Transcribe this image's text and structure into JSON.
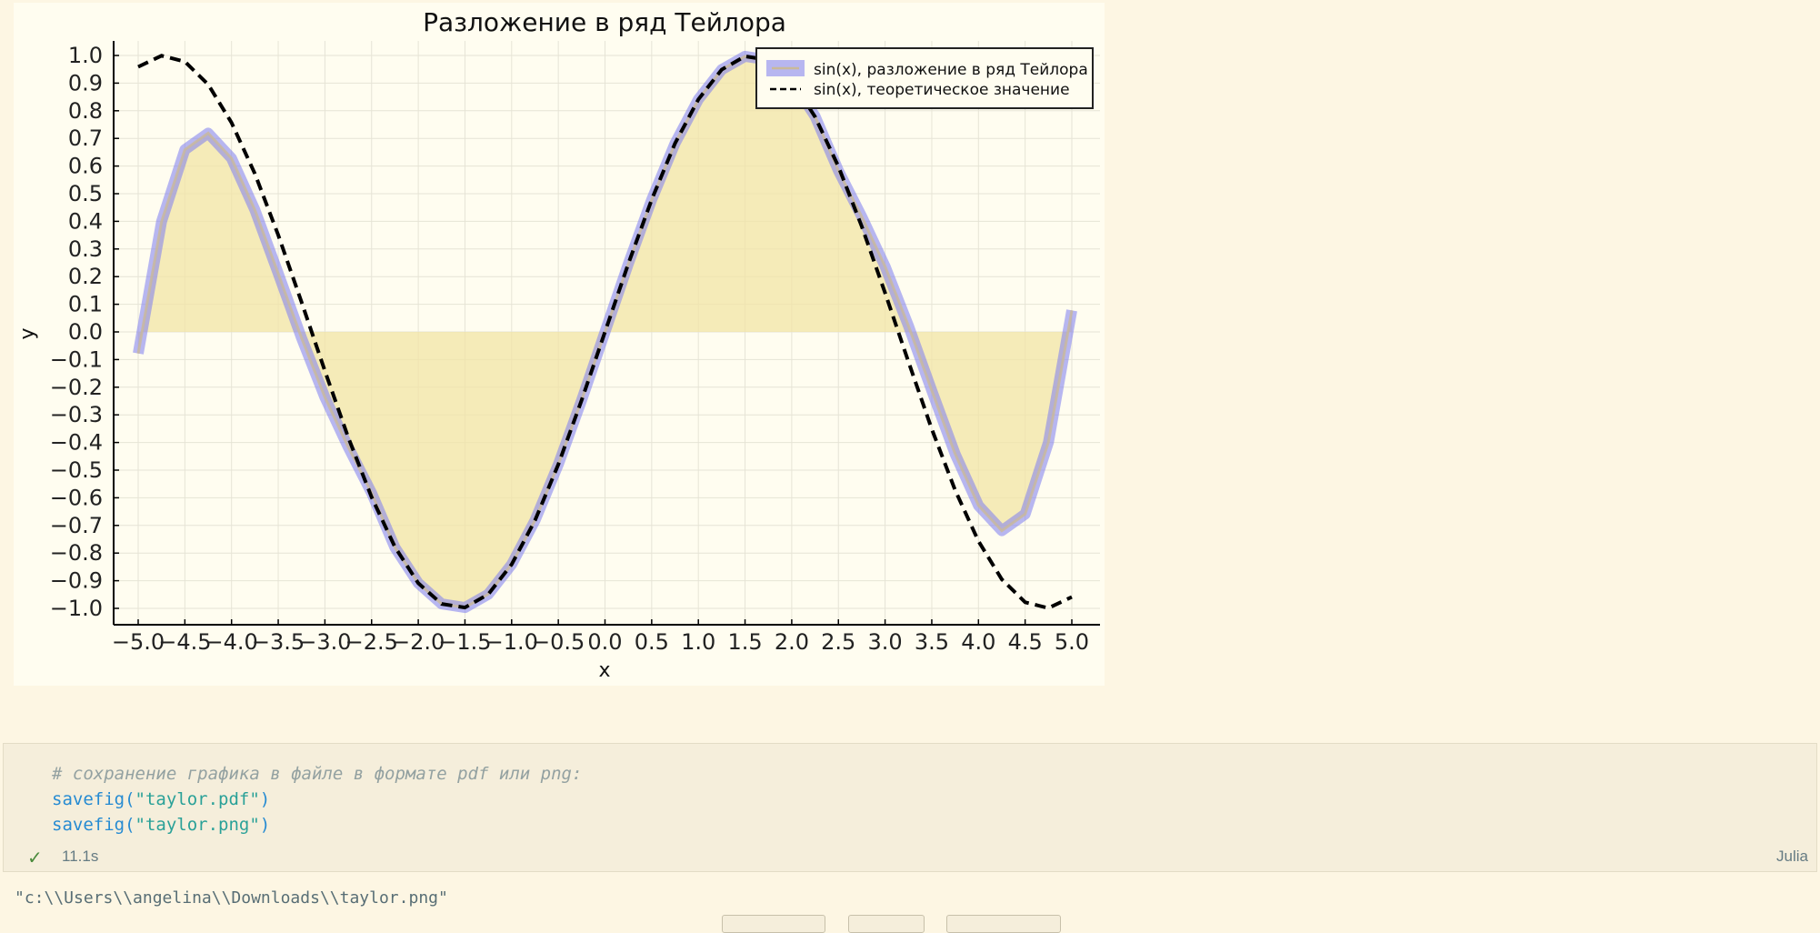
{
  "plot": {
    "chart_data": {
      "type": "line",
      "title": "Разложение в ряд Тейлора",
      "xlabel": "x",
      "ylabel": "y",
      "xlim": [
        -5.0,
        5.0
      ],
      "ylim": [
        -1.0,
        1.0
      ],
      "xticks": [
        "−5.0",
        "−4.5",
        "−4.0",
        "−3.5",
        "−3.0",
        "−2.5",
        "−2.0",
        "−1.5",
        "−1.0",
        "−0.5",
        "0.0",
        "0.5",
        "1.0",
        "1.5",
        "2.0",
        "2.5",
        "3.0",
        "3.5",
        "4.0",
        "4.5",
        "5.0"
      ],
      "yticks": [
        "−1.0",
        "−0.9",
        "−0.8",
        "−0.7",
        "−0.6",
        "−0.5",
        "−0.4",
        "−0.3",
        "−0.2",
        "−0.1",
        "0.0",
        "0.1",
        "0.2",
        "0.3",
        "0.4",
        "0.5",
        "0.6",
        "0.7",
        "0.8",
        "0.9",
        "1.0"
      ],
      "grid": true,
      "legend_position": "top-right",
      "series": [
        {
          "name": "sin(x), разложение в ряд Тейлора",
          "style": "thick semi-transparent blue line with filled area to y=0",
          "color": "#7b7bf0",
          "fill_color": "#f2e4a6",
          "x": [
            -5.0,
            -4.75,
            -4.5,
            -4.25,
            -4.0,
            -3.75,
            -3.5,
            -3.25,
            -3.0,
            -2.75,
            -2.5,
            -2.25,
            -2.0,
            -1.75,
            -1.5,
            -1.25,
            -1.0,
            -0.75,
            -0.5,
            -0.25,
            0.0,
            0.25,
            0.5,
            0.75,
            1.0,
            1.25,
            1.5,
            1.75,
            2.0,
            2.25,
            2.5,
            2.75,
            3.0,
            3.25,
            3.5,
            3.75,
            4.0,
            4.25,
            4.5,
            4.75,
            5.0
          ],
          "y": [
            -0.078,
            0.399,
            0.659,
            0.719,
            0.628,
            0.441,
            0.212,
            -0.022,
            -0.237,
            -0.417,
            -0.583,
            -0.78,
            -0.909,
            -0.984,
            -0.997,
            -0.949,
            -0.841,
            -0.682,
            -0.479,
            -0.247,
            0.0,
            0.247,
            0.479,
            0.682,
            0.841,
            0.949,
            0.997,
            0.984,
            0.909,
            0.78,
            0.583,
            0.417,
            0.237,
            0.022,
            -0.212,
            -0.441,
            -0.628,
            -0.719,
            -0.659,
            -0.399,
            0.078
          ]
        },
        {
          "name": "sin(x), теоретическое значение",
          "style": "black dashed line",
          "color": "#000000",
          "x": [
            -5.0,
            -4.75,
            -4.5,
            -4.25,
            -4.0,
            -3.75,
            -3.5,
            -3.25,
            -3.0,
            -2.75,
            -2.5,
            -2.25,
            -2.0,
            -1.75,
            -1.5,
            -1.25,
            -1.0,
            -0.75,
            -0.5,
            -0.25,
            0.0,
            0.25,
            0.5,
            0.75,
            1.0,
            1.25,
            1.5,
            1.75,
            2.0,
            2.25,
            2.5,
            2.75,
            3.0,
            3.25,
            3.5,
            3.75,
            4.0,
            4.25,
            4.5,
            4.75,
            5.0
          ],
          "y": [
            0.959,
            0.999,
            0.978,
            0.895,
            0.757,
            0.572,
            0.351,
            0.108,
            -0.141,
            -0.382,
            -0.598,
            -0.778,
            -0.909,
            -0.984,
            -0.997,
            -0.949,
            -0.841,
            -0.682,
            -0.479,
            -0.247,
            0.0,
            0.247,
            0.479,
            0.682,
            0.841,
            0.949,
            0.997,
            0.984,
            0.909,
            0.778,
            0.598,
            0.382,
            0.141,
            -0.108,
            -0.351,
            -0.572,
            -0.757,
            -0.895,
            -0.978,
            -0.999,
            -0.959
          ]
        }
      ]
    }
  },
  "code_cell": {
    "line1": "# сохранение графика в файле в формате pdf или png:",
    "line2_fn": "savefig(",
    "line2_str": "\"taylor.pdf\"",
    "line2_close": ")",
    "line3_fn": "savefig(",
    "line3_str": "\"taylor.png\"",
    "line3_close": ")",
    "status_icon": "check-icon",
    "exec_time": "11.1s",
    "language": "Julia"
  },
  "output": {
    "text": "\"c:\\\\Users\\\\angelina\\\\Downloads\\\\taylor.png\""
  }
}
